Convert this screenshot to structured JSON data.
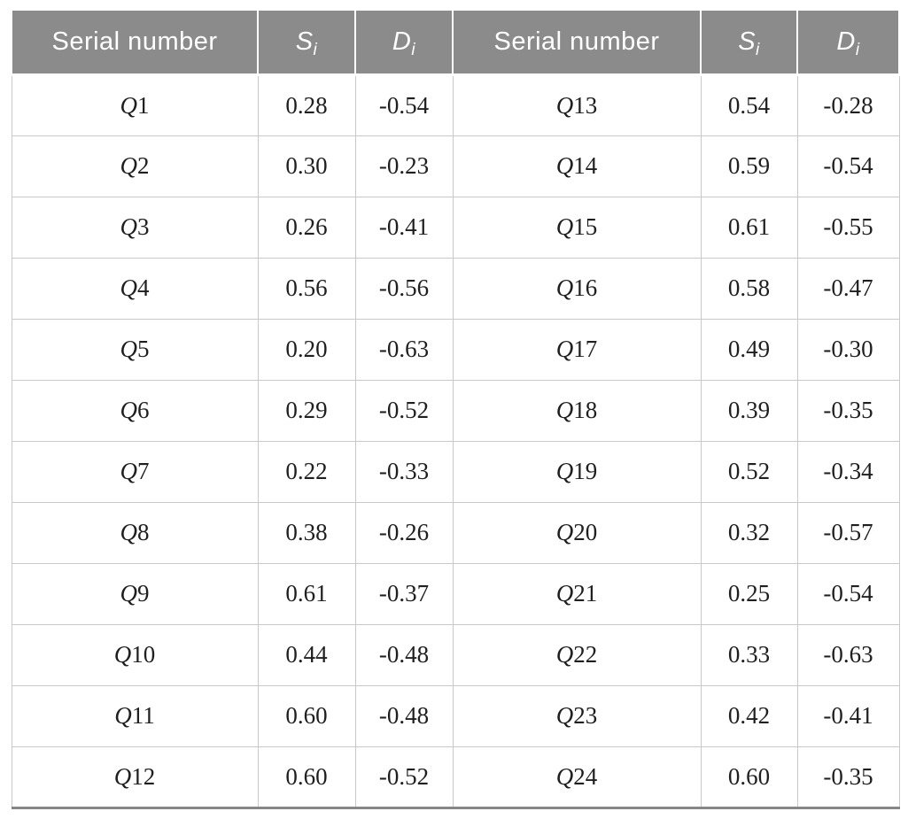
{
  "table": {
    "header": {
      "serial_label": "Serial number",
      "s_label": "S",
      "d_label": "D",
      "index_sub": "i"
    },
    "rows": [
      {
        "left": {
          "serial": "Q1",
          "si": "0.28",
          "di": "-0.54"
        },
        "right": {
          "serial": "Q13",
          "si": "0.54",
          "di": "-0.28"
        }
      },
      {
        "left": {
          "serial": "Q2",
          "si": "0.30",
          "di": "-0.23"
        },
        "right": {
          "serial": "Q14",
          "si": "0.59",
          "di": "-0.54"
        }
      },
      {
        "left": {
          "serial": "Q3",
          "si": "0.26",
          "di": "-0.41"
        },
        "right": {
          "serial": "Q15",
          "si": "0.61",
          "di": "-0.55"
        }
      },
      {
        "left": {
          "serial": "Q4",
          "si": "0.56",
          "di": "-0.56"
        },
        "right": {
          "serial": "Q16",
          "si": "0.58",
          "di": "-0.47"
        }
      },
      {
        "left": {
          "serial": "Q5",
          "si": "0.20",
          "di": "-0.63"
        },
        "right": {
          "serial": "Q17",
          "si": "0.49",
          "di": "-0.30"
        }
      },
      {
        "left": {
          "serial": "Q6",
          "si": "0.29",
          "di": "-0.52"
        },
        "right": {
          "serial": "Q18",
          "si": "0.39",
          "di": "-0.35"
        }
      },
      {
        "left": {
          "serial": "Q7",
          "si": "0.22",
          "di": "-0.33"
        },
        "right": {
          "serial": "Q19",
          "si": "0.52",
          "di": "-0.34"
        }
      },
      {
        "left": {
          "serial": "Q8",
          "si": "0.38",
          "di": "-0.26"
        },
        "right": {
          "serial": "Q20",
          "si": "0.32",
          "di": "-0.57"
        }
      },
      {
        "left": {
          "serial": "Q9",
          "si": "0.61",
          "di": "-0.37"
        },
        "right": {
          "serial": "Q21",
          "si": "0.25",
          "di": "-0.54"
        }
      },
      {
        "left": {
          "serial": "Q10",
          "si": "0.44",
          "di": "-0.48"
        },
        "right": {
          "serial": "Q22",
          "si": "0.33",
          "di": "-0.63"
        }
      },
      {
        "left": {
          "serial": "Q11",
          "si": "0.60",
          "di": "-0.48"
        },
        "right": {
          "serial": "Q23",
          "si": "0.42",
          "di": "-0.41"
        }
      },
      {
        "left": {
          "serial": "Q12",
          "si": "0.60",
          "di": "-0.52"
        },
        "right": {
          "serial": "Q24",
          "si": "0.60",
          "di": "-0.35"
        }
      }
    ]
  },
  "colors": {
    "header_bg": "#8b8b8b",
    "header_text": "#ffffff",
    "cell_border": "#c9c9c9",
    "bottom_border": "#868686",
    "body_text": "#1f1f1f"
  }
}
